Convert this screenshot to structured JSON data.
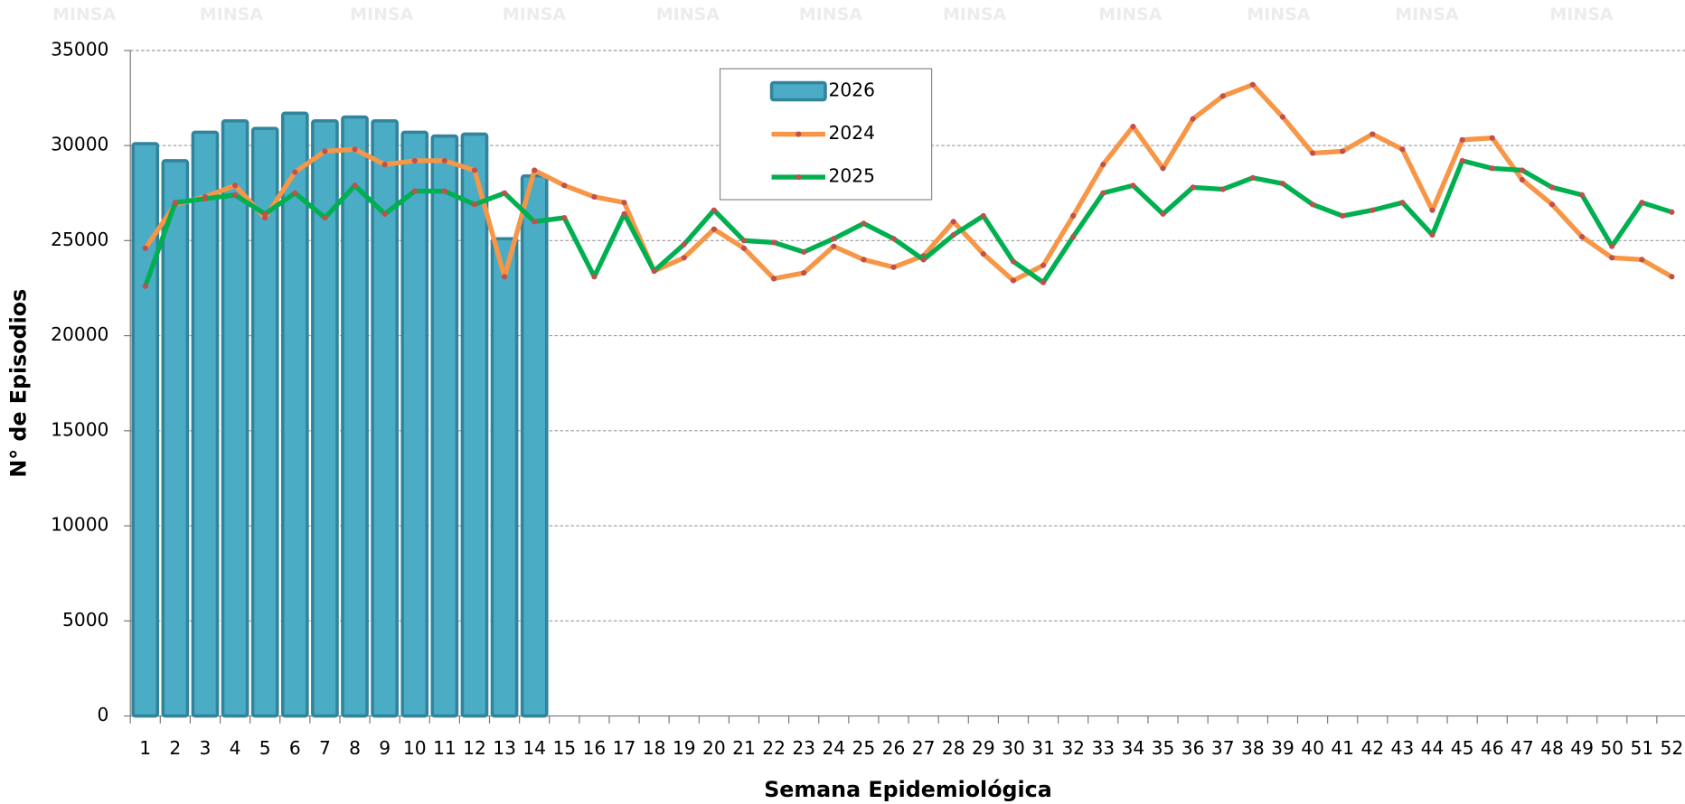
{
  "chart_data": {
    "type": "combo",
    "watermark": "MINSA",
    "x_label": "Semana Epidemiológica",
    "y_label": "N° de Episodios",
    "categories": [
      "1",
      "2",
      "3",
      "4",
      "5",
      "6",
      "7",
      "8",
      "9",
      "10",
      "11",
      "12",
      "13",
      "14",
      "15",
      "16",
      "17",
      "18",
      "19",
      "20",
      "21",
      "22",
      "23",
      "24",
      "25",
      "26",
      "27",
      "28",
      "29",
      "30",
      "31",
      "32",
      "33",
      "34",
      "35",
      "36",
      "37",
      "38",
      "39",
      "40",
      "41",
      "42",
      "43",
      "44",
      "45",
      "46",
      "47",
      "48",
      "49",
      "50",
      "51",
      "52"
    ],
    "ylim": [
      0,
      35000
    ],
    "yticks": [
      0,
      5000,
      10000,
      15000,
      20000,
      25000,
      30000,
      35000
    ],
    "grid": true,
    "legend": "top-center",
    "series": [
      {
        "name": "2026",
        "type": "bar",
        "color": "#4bacc6",
        "edge_color": "#31849b",
        "values": [
          30100,
          29200,
          30700,
          31300,
          30900,
          31700,
          31300,
          31500,
          31300,
          30700,
          30500,
          30600,
          25100,
          28400,
          null,
          null,
          null,
          null,
          null,
          null,
          null,
          null,
          null,
          null,
          null,
          null,
          null,
          null,
          null,
          null,
          null,
          null,
          null,
          null,
          null,
          null,
          null,
          null,
          null,
          null,
          null,
          null,
          null,
          null,
          null,
          null,
          null,
          null,
          null,
          null,
          null,
          null
        ]
      },
      {
        "name": "2024",
        "type": "line",
        "color": "#f79646",
        "marker_color": "#c0504d",
        "values": [
          24600,
          26900,
          27300,
          27900,
          26200,
          28600,
          29700,
          29800,
          29000,
          29200,
          29200,
          28700,
          23100,
          28700,
          27900,
          27300,
          27000,
          23400,
          24100,
          25600,
          24600,
          23000,
          23300,
          24700,
          24000,
          23600,
          24200,
          26000,
          24300,
          22900,
          23700,
          26300,
          29000,
          31000,
          28800,
          31400,
          32600,
          33200,
          31500,
          29600,
          29700,
          30600,
          29800,
          26600,
          30300,
          30400,
          28200,
          26900,
          25200,
          24100,
          24000,
          23100
        ]
      },
      {
        "name": "2025",
        "type": "line",
        "color": "#00b050",
        "marker_color": "#c0504d",
        "values": [
          22600,
          27000,
          27200,
          27400,
          26400,
          27500,
          26200,
          27900,
          26400,
          27600,
          27600,
          26900,
          27500,
          26000,
          26200,
          23100,
          26400,
          23400,
          24800,
          26600,
          25000,
          24900,
          24400,
          25100,
          25900,
          25100,
          24000,
          25300,
          26300,
          23900,
          22800,
          25200,
          27500,
          27900,
          26400,
          27800,
          27700,
          28300,
          28000,
          26900,
          26300,
          26600,
          27000,
          25300,
          29200,
          28800,
          28700,
          27800,
          27400,
          24700,
          27000,
          26500
        ]
      }
    ]
  }
}
